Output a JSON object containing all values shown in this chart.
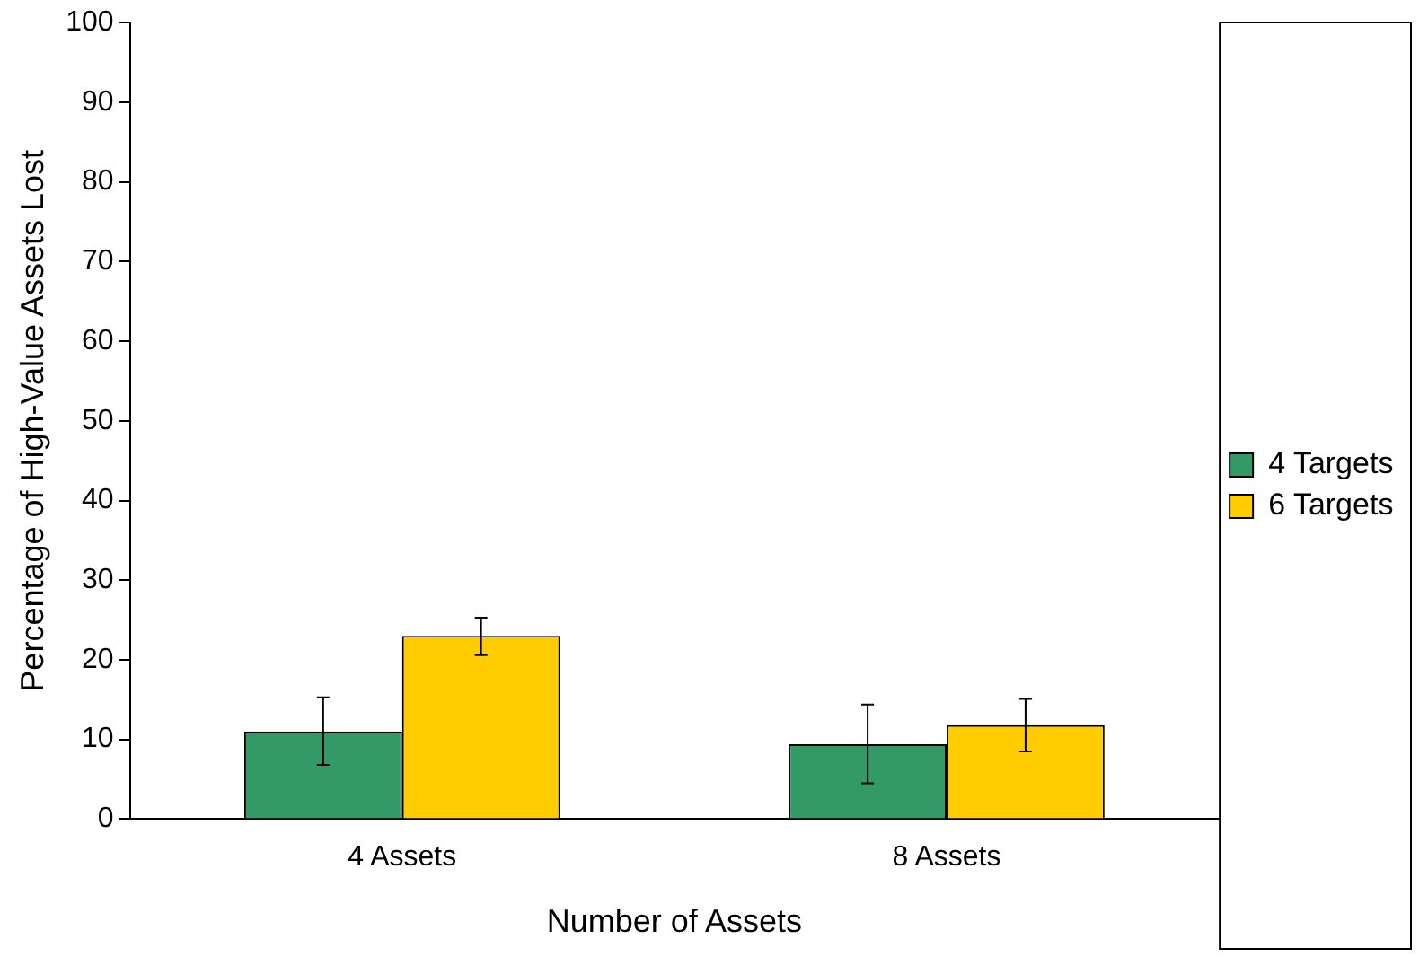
{
  "chart_data": {
    "type": "bar",
    "xlabel": "Number of Assets",
    "ylabel": "Percentage of High-Value Assets Lost",
    "categories": [
      "4 Assets",
      "8 Assets"
    ],
    "series": [
      {
        "name": "4 Targets",
        "color": "#339966",
        "values": [
          11.0,
          9.4
        ],
        "errors": [
          [
            6.8,
            15.3
          ],
          [
            4.5,
            14.4
          ]
        ]
      },
      {
        "name": "6 Targets",
        "color": "#ffcc00",
        "values": [
          23.0,
          11.8
        ],
        "errors": [
          [
            20.6,
            25.3
          ],
          [
            8.5,
            15.1
          ]
        ]
      }
    ],
    "ylim": [
      0,
      100
    ],
    "yticks": [
      0,
      10,
      20,
      30,
      40,
      50,
      60,
      70,
      80,
      90,
      100
    ],
    "grid": false,
    "legend": "right"
  }
}
